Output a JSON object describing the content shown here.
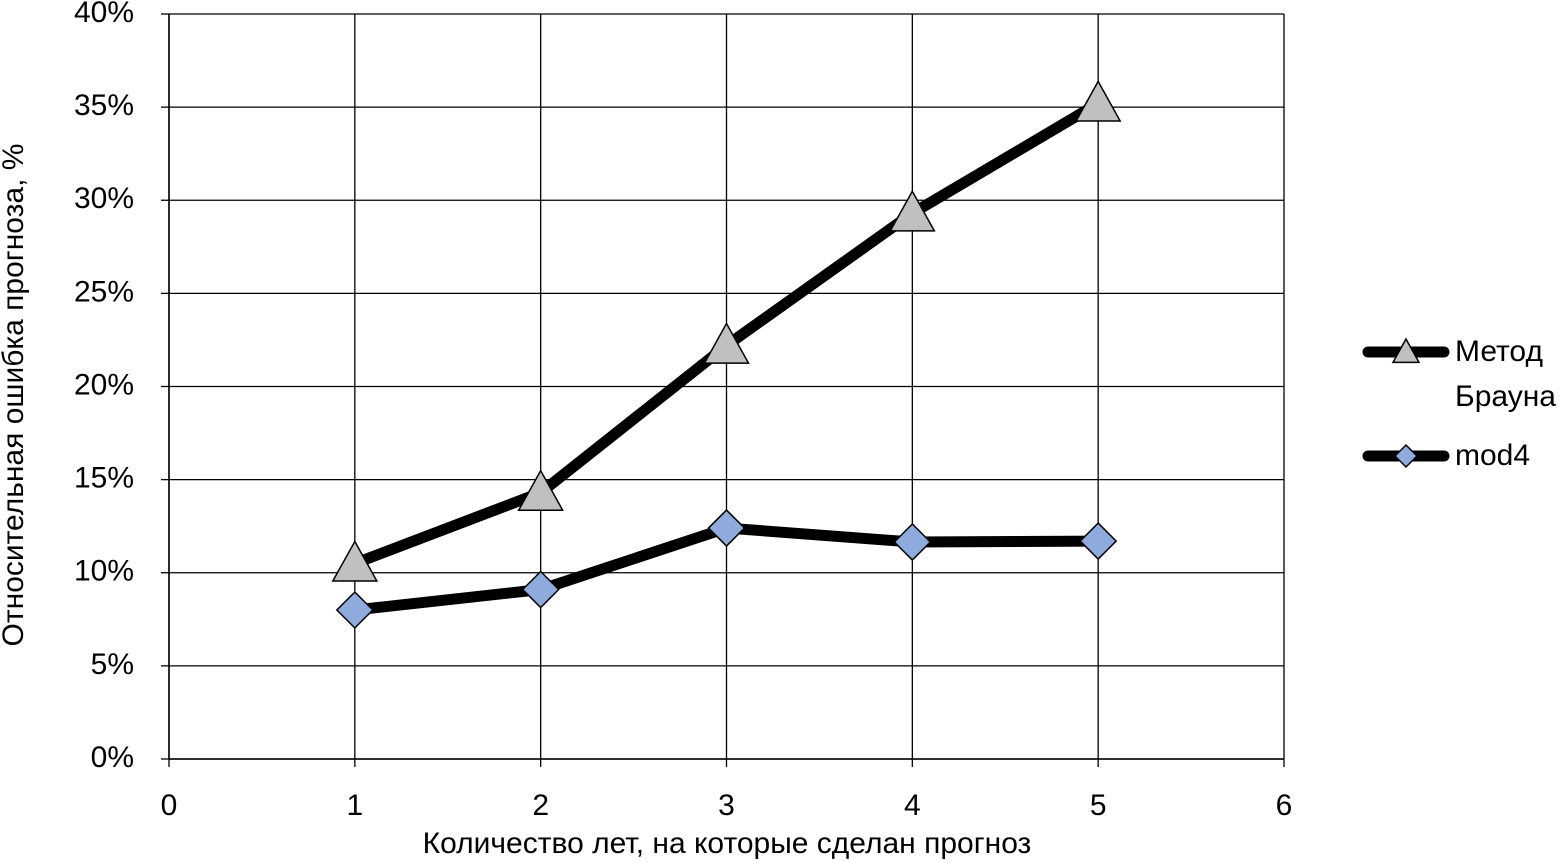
{
  "chart_data": {
    "type": "line",
    "x_label": "Количество лет, на которые сделан прогноз",
    "y_label": "Относительная ошибка прогноза, %",
    "xlim": [
      0,
      6
    ],
    "xticks": [
      0,
      1,
      2,
      3,
      4,
      5,
      6
    ],
    "ylim": [
      0,
      40
    ],
    "yticks": [
      {
        "value": 0,
        "label": "0%"
      },
      {
        "value": 5,
        "label": "5%"
      },
      {
        "value": 10,
        "label": "10%"
      },
      {
        "value": 15,
        "label": "15%"
      },
      {
        "value": 20,
        "label": "20%"
      },
      {
        "value": 25,
        "label": "25%"
      },
      {
        "value": 30,
        "label": "30%"
      },
      {
        "value": 35,
        "label": "35%"
      },
      {
        "value": 40,
        "label": "40%"
      }
    ],
    "grid": true,
    "legend": "right",
    "series": [
      {
        "name": "Метод Брауна",
        "color": "#000000",
        "marker": "triangle",
        "marker_color": "#c0c0c0",
        "x": [
          1,
          2,
          3,
          4,
          5
        ],
        "values": [
          10.5,
          14.3,
          22.2,
          29.3,
          35.2
        ]
      },
      {
        "name": "mod4",
        "color": "#000000",
        "marker": "diamond",
        "marker_color": "#8faadc",
        "x": [
          1,
          2,
          3,
          4,
          5
        ],
        "values": [
          8.0,
          9.1,
          12.4,
          11.65,
          11.7
        ]
      }
    ]
  }
}
